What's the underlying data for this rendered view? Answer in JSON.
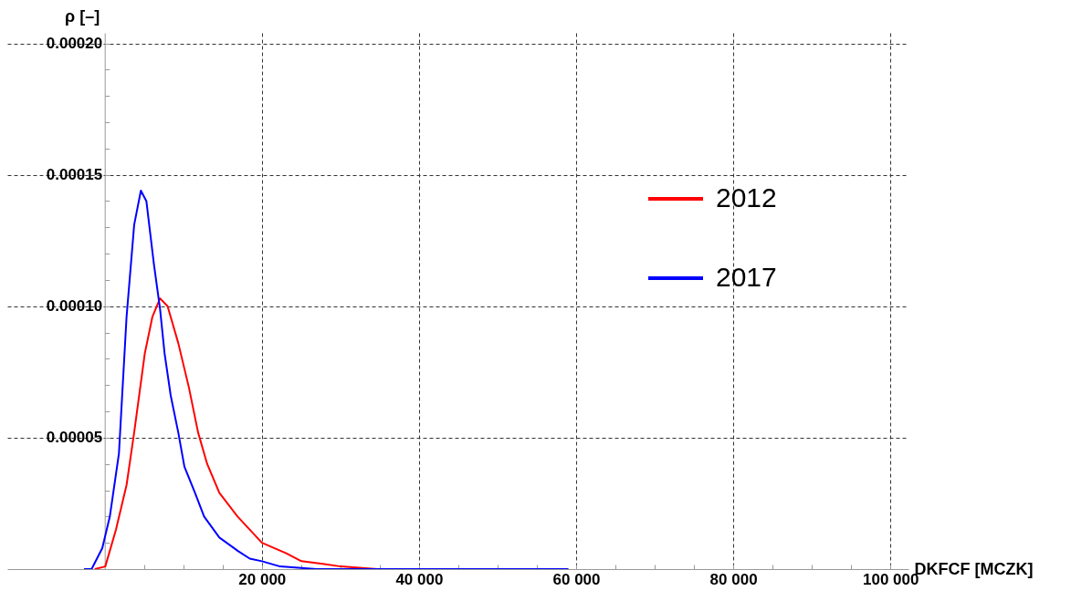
{
  "chart_data": {
    "type": "line",
    "xlabel": "DKFCF [MCZK]",
    "ylabel": "ρ [–]",
    "xlim": [
      -12400,
      102300
    ],
    "ylim": [
      0,
      0.000204
    ],
    "xticks": [
      {
        "value": 5000,
        "label": null
      },
      {
        "value": 10000,
        "label": null
      },
      {
        "value": 15000,
        "label": null
      },
      {
        "value": 20000,
        "label": "20 000"
      },
      {
        "value": 25000,
        "label": null
      },
      {
        "value": 30000,
        "label": null
      },
      {
        "value": 35000,
        "label": null
      },
      {
        "value": 40000,
        "label": "40 000"
      },
      {
        "value": 45000,
        "label": null
      },
      {
        "value": 50000,
        "label": null
      },
      {
        "value": 55000,
        "label": null
      },
      {
        "value": 60000,
        "label": "60 000"
      },
      {
        "value": 65000,
        "label": null
      },
      {
        "value": 70000,
        "label": null
      },
      {
        "value": 75000,
        "label": null
      },
      {
        "value": 80000,
        "label": "80 000"
      },
      {
        "value": 85000,
        "label": null
      },
      {
        "value": 90000,
        "label": null
      },
      {
        "value": 95000,
        "label": null
      },
      {
        "value": 100000,
        "label": "100 000"
      }
    ],
    "yticks": [
      {
        "value": 1e-05,
        "label": null
      },
      {
        "value": 2e-05,
        "label": null
      },
      {
        "value": 3e-05,
        "label": null
      },
      {
        "value": 4e-05,
        "label": null
      },
      {
        "value": 5e-05,
        "label": "0.00005"
      },
      {
        "value": 6e-05,
        "label": null
      },
      {
        "value": 7e-05,
        "label": null
      },
      {
        "value": 8e-05,
        "label": null
      },
      {
        "value": 9e-05,
        "label": null
      },
      {
        "value": 0.0001,
        "label": "0.00010"
      },
      {
        "value": 0.00011,
        "label": null
      },
      {
        "value": 0.00012,
        "label": null
      },
      {
        "value": 0.00013,
        "label": null
      },
      {
        "value": 0.00014,
        "label": null
      },
      {
        "value": 0.00015,
        "label": "0.00015"
      },
      {
        "value": 0.00016,
        "label": null
      },
      {
        "value": 0.00017,
        "label": null
      },
      {
        "value": 0.00018,
        "label": null
      },
      {
        "value": 0.00019,
        "label": null
      },
      {
        "value": 0.0002,
        "label": "0.00020"
      }
    ],
    "grid": true,
    "legend": "right",
    "line_style": "solid",
    "series": [
      {
        "name": "2012",
        "color": "#ff0000",
        "x": [
          -1280,
          70,
          1430,
          2780,
          3750,
          5100,
          6070,
          7040,
          8000,
          9360,
          10720,
          11880,
          13040,
          14590,
          16910,
          20010,
          23100,
          25040,
          27750,
          30070,
          34700,
          39300,
          59000
        ],
        "values": [
          0,
          1e-06,
          1.5e-05,
          3.2e-05,
          5.2e-05,
          8.2e-05,
          9.6e-05,
          0.000103,
          0.0001,
          8.6e-05,
          6.9e-05,
          5.2e-05,
          4e-05,
          2.9e-05,
          2e-05,
          1e-05,
          6e-06,
          3e-06,
          2e-06,
          1e-06,
          0,
          0,
          0
        ]
      },
      {
        "name": "2017",
        "color": "#0000ff",
        "x": [
          -2640,
          -1670,
          -310,
          650,
          1810,
          2780,
          3750,
          4600,
          5300,
          6260,
          7040,
          7620,
          8400,
          9360,
          10140,
          11490,
          12650,
          14590,
          16910,
          18460,
          20010,
          22330,
          26980,
          59000
        ],
        "values": [
          0,
          0,
          8e-06,
          2e-05,
          4.4e-05,
          9.6e-05,
          0.000131,
          0.000144,
          0.00014,
          0.000116,
          9.9e-05,
          8.2e-05,
          6.6e-05,
          5.2e-05,
          3.9e-05,
          2.9e-05,
          2e-05,
          1.2e-05,
          7e-06,
          4e-06,
          3e-06,
          1e-06,
          0,
          0
        ]
      }
    ]
  }
}
